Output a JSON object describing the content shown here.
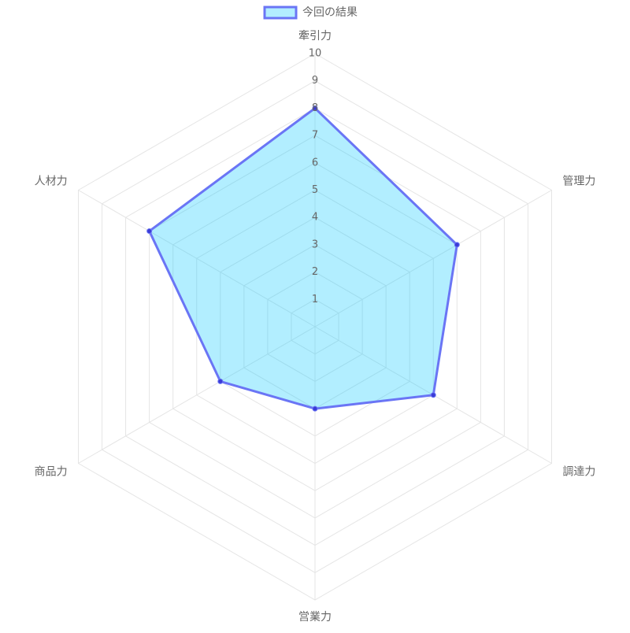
{
  "chart_data": {
    "type": "radar",
    "categories": [
      "牽引力",
      "管理力",
      "調達力",
      "営業力",
      "商品力",
      "人材力"
    ],
    "series": [
      {
        "name": "今回の結果",
        "color": "#6a75f5",
        "fill": "rgba(0,200,255,0.3)",
        "point_color": "#3b3bd6",
        "values": [
          8,
          6,
          5,
          3,
          4,
          7
        ]
      }
    ],
    "ylim": [
      0,
      10
    ],
    "yticks": [
      1,
      2,
      3,
      4,
      5,
      6,
      7,
      8,
      9,
      10
    ],
    "grid": true,
    "legend": "top"
  }
}
